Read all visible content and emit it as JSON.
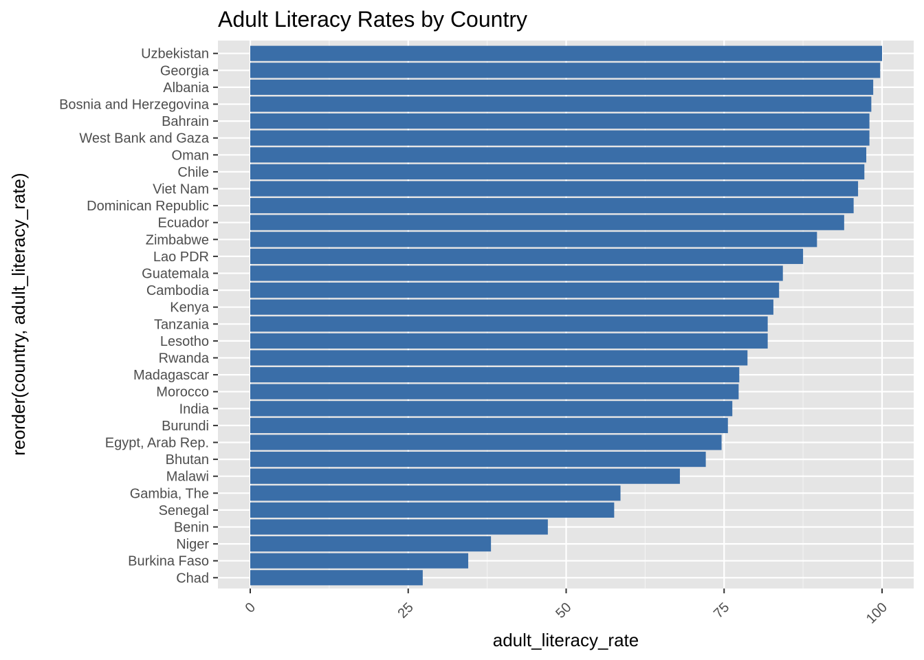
{
  "chart_data": {
    "type": "bar",
    "orientation": "horizontal",
    "title": "Adult Literacy Rates by Country",
    "xlabel": "adult_literacy_rate",
    "ylabel": "reorder(country, adult_literacy_rate)",
    "xlim": [
      0,
      100
    ],
    "xticks": [
      0,
      25,
      50,
      75,
      100
    ],
    "grid": true,
    "bar_color": "#3A6EA8",
    "panel_color": "#E5E5E5",
    "categories": [
      "Uzbekistan",
      "Georgia",
      "Albania",
      "Bosnia and Herzegovina",
      "Bahrain",
      "West Bank and Gaza",
      "Oman",
      "Chile",
      "Viet Nam",
      "Dominican Republic",
      "Ecuador",
      "Zimbabwe",
      "Lao PDR",
      "Guatemala",
      "Cambodia",
      "Kenya",
      "Tanzania",
      "Lesotho",
      "Rwanda",
      "Madagascar",
      "Morocco",
      "India",
      "Burundi",
      "Egypt, Arab Rep.",
      "Bhutan",
      "Malawi",
      "Gambia, The",
      "Senegal",
      "Benin",
      "Niger",
      "Burkina Faso",
      "Chad"
    ],
    "values": [
      100.0,
      99.7,
      98.6,
      98.3,
      98.0,
      98.0,
      97.5,
      97.2,
      96.2,
      95.5,
      94.0,
      89.7,
      87.5,
      84.3,
      83.7,
      82.8,
      81.9,
      81.9,
      78.7,
      77.4,
      77.3,
      76.3,
      75.6,
      74.6,
      72.1,
      68.0,
      58.6,
      57.6,
      47.1,
      38.1,
      34.5,
      27.3
    ]
  }
}
